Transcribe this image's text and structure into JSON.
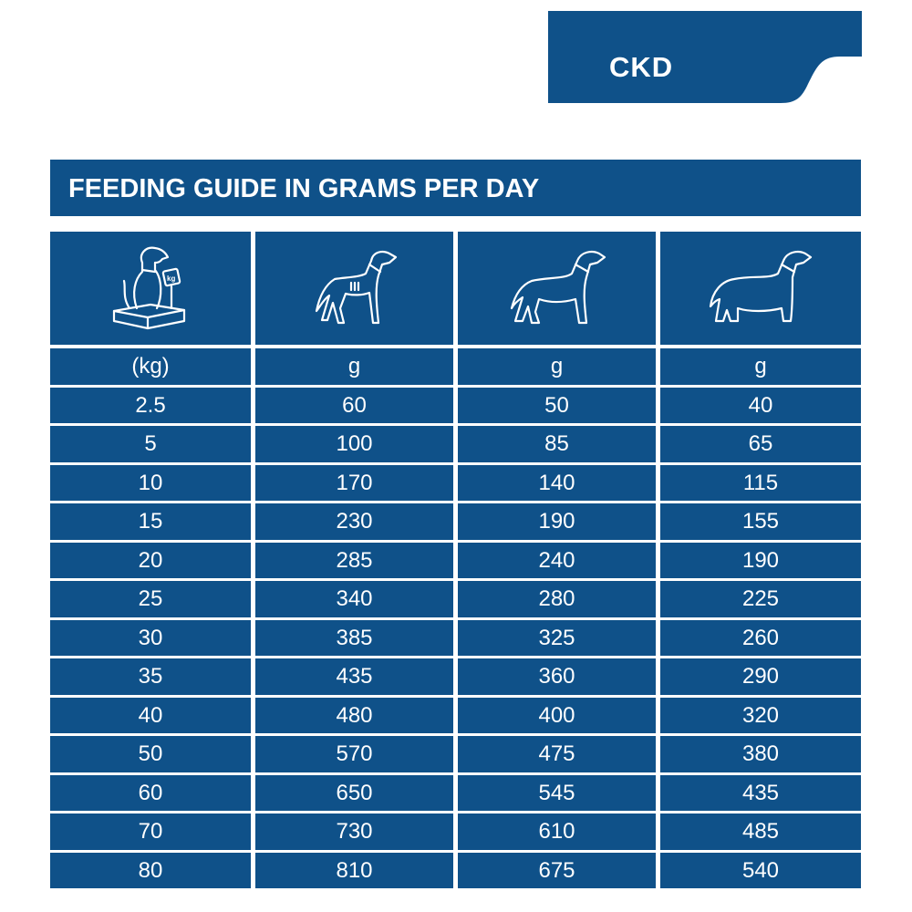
{
  "tab": {
    "label": "CKD"
  },
  "title": "FEEDING GUIDE IN GRAMS PER DAY",
  "colors": {
    "brand": "#0f5189",
    "text": "#ffffff"
  },
  "header_icons": [
    "dog-on-scale-icon",
    "thin-dog-icon",
    "normal-dog-icon",
    "overweight-dog-icon"
  ],
  "scale_label": "kg",
  "units": [
    "(kg)",
    "g",
    "g",
    "g"
  ],
  "rows": [
    [
      "2.5",
      "60",
      "50",
      "40"
    ],
    [
      "5",
      "100",
      "85",
      "65"
    ],
    [
      "10",
      "170",
      "140",
      "115"
    ],
    [
      "15",
      "230",
      "190",
      "155"
    ],
    [
      "20",
      "285",
      "240",
      "190"
    ],
    [
      "25",
      "340",
      "280",
      "225"
    ],
    [
      "30",
      "385",
      "325",
      "260"
    ],
    [
      "35",
      "435",
      "360",
      "290"
    ],
    [
      "40",
      "480",
      "400",
      "320"
    ],
    [
      "50",
      "570",
      "475",
      "380"
    ],
    [
      "60",
      "650",
      "545",
      "435"
    ],
    [
      "70",
      "730",
      "610",
      "485"
    ],
    [
      "80",
      "810",
      "675",
      "540"
    ]
  ]
}
